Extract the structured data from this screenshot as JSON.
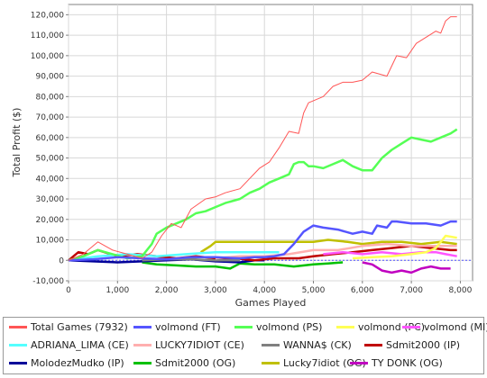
{
  "chart_data": {
    "type": "line",
    "xlabel": "Games Played",
    "ylabel": "Total Profit ($)",
    "xlim": [
      0,
      8250
    ],
    "ylim": [
      -10000,
      125000
    ],
    "xticks": [
      0,
      1000,
      2000,
      3000,
      4000,
      5000,
      6000,
      7000,
      8000
    ],
    "xtick_labels": [
      "0",
      "1,000",
      "2,000",
      "3,000",
      "4,000",
      "5,000",
      "6,000",
      "7,000",
      "8,000"
    ],
    "yticks": [
      -10000,
      0,
      10000,
      20000,
      30000,
      40000,
      50000,
      60000,
      70000,
      80000,
      90000,
      100000,
      110000,
      120000
    ],
    "ytick_labels": [
      "-10,000",
      "0",
      "10,000",
      "20,000",
      "30,000",
      "40,000",
      "50,000",
      "60,000",
      "70,000",
      "80,000",
      "90,000",
      "100,000",
      "110,000",
      "120,000"
    ],
    "grid": true,
    "legend_position": "bottom",
    "series": [
      {
        "name": "Total Games (7932)",
        "color": "#ff5555",
        "width": 1,
        "x": [
          0,
          300,
          600,
          900,
          1200,
          1500,
          1700,
          1900,
          2100,
          2300,
          2500,
          2800,
          3000,
          3200,
          3500,
          3700,
          3900,
          4100,
          4300,
          4500,
          4700,
          4800,
          4900,
          5000,
          5200,
          5400,
          5600,
          5800,
          6000,
          6200,
          6500,
          6700,
          6900,
          7100,
          7300,
          7500,
          7600,
          7700,
          7800,
          7932
        ],
        "y": [
          0,
          3000,
          9000,
          5000,
          3000,
          1000,
          4000,
          12000,
          18000,
          16000,
          25000,
          30000,
          31000,
          33000,
          35000,
          40000,
          45000,
          48000,
          55000,
          63000,
          62000,
          72000,
          77000,
          78000,
          80000,
          85000,
          87000,
          87000,
          88000,
          92000,
          90000,
          100000,
          99000,
          106000,
          109000,
          112000,
          111000,
          117000,
          119000,
          119000
        ]
      },
      {
        "name": "volmond (FT)",
        "color": "#5555ff",
        "width": 2.5,
        "x": [
          0,
          500,
          1000,
          1500,
          2000,
          2500,
          3000,
          3500,
          3800,
          4000,
          4200,
          4400,
          4600,
          4800,
          5000,
          5200,
          5500,
          5800,
          6000,
          6200,
          6300,
          6500,
          6600,
          6700,
          7000,
          7300,
          7600,
          7800,
          7932
        ],
        "y": [
          0,
          500,
          1500,
          1000,
          500,
          1500,
          1500,
          1000,
          1500,
          1500,
          2000,
          3000,
          8000,
          14000,
          17000,
          16000,
          15000,
          13000,
          14000,
          13000,
          17000,
          16000,
          19000,
          19000,
          18000,
          18000,
          17000,
          19000,
          19000
        ]
      },
      {
        "name": "volmond (PS)",
        "color": "#55ff55",
        "width": 2.5,
        "x": [
          0,
          300,
          600,
          900,
          1200,
          1500,
          1700,
          1800,
          2000,
          2200,
          2400,
          2600,
          2800,
          3000,
          3200,
          3500,
          3700,
          3900,
          4100,
          4300,
          4500,
          4600,
          4700,
          4800,
          4900,
          5000,
          5200,
          5400,
          5600,
          5800,
          6000,
          6200,
          6400,
          6600,
          6800,
          7000,
          7200,
          7400,
          7600,
          7800,
          7932
        ],
        "y": [
          0,
          2000,
          5000,
          3000,
          1000,
          2000,
          8000,
          13000,
          16000,
          18000,
          20000,
          23000,
          24000,
          26000,
          28000,
          30000,
          33000,
          35000,
          38000,
          40000,
          42000,
          47000,
          48000,
          48000,
          46000,
          46000,
          45000,
          47000,
          49000,
          46000,
          44000,
          44000,
          50000,
          54000,
          57000,
          60000,
          59000,
          58000,
          60000,
          62000,
          64000
        ]
      },
      {
        "name": "volmond (PC)",
        "color": "#ffff55",
        "width": 2.5,
        "x": [
          5800,
          6200,
          6600,
          7000,
          7300,
          7500,
          7700,
          7932
        ],
        "y": [
          1000,
          1500,
          2000,
          3000,
          4000,
          6000,
          12000,
          11000
        ]
      },
      {
        "name": "volmond (MI)",
        "color": "#ff55ff",
        "width": 2.5,
        "x": [
          5200,
          5600,
          6000,
          6400,
          6800,
          7200,
          7500,
          7700,
          7932
        ],
        "y": [
          3000,
          4000,
          3000,
          4000,
          3000,
          4000,
          4000,
          3000,
          2000
        ]
      },
      {
        "name": "ADRIANA_LIMA (CE)",
        "color": "#55ffff",
        "width": 2.5,
        "x": [
          0,
          600,
          1200,
          1800,
          2400,
          3000,
          3600,
          4000,
          4300
        ],
        "y": [
          0,
          2000,
          3000,
          2000,
          3000,
          4000,
          4000,
          4000,
          4000
        ]
      },
      {
        "name": "LUCKY7IDIOT (CE)",
        "color": "#ffafaf",
        "width": 2.5,
        "x": [
          3000,
          3500,
          4000,
          4500,
          5000,
          5500,
          6000,
          6500,
          7000,
          7500,
          7932
        ],
        "y": [
          1000,
          2000,
          2000,
          3000,
          5000,
          5000,
          7000,
          8000,
          7000,
          7000,
          7000
        ]
      },
      {
        "name": "WANNA$ (CK)",
        "color": "#808080",
        "width": 2.5,
        "x": [
          1500,
          2000,
          2500,
          3000,
          3500
        ],
        "y": [
          0,
          500,
          500,
          0,
          0
        ]
      },
      {
        "name": "Sdmit2000 (IP)",
        "color": "#c00000",
        "width": 2.5,
        "x": [
          0,
          200,
          400,
          600,
          1000,
          1400,
          1800,
          2200,
          2600,
          3000,
          3400,
          3800,
          4200,
          4700,
          5000,
          5400,
          5800,
          6200,
          6600,
          7000,
          7400,
          7800,
          7932
        ],
        "y": [
          0,
          4000,
          3000,
          5000,
          2000,
          3000,
          2000,
          1000,
          2000,
          1000,
          1000,
          0,
          1000,
          1000,
          2000,
          3000,
          4000,
          5000,
          6000,
          7000,
          6000,
          5000,
          5000
        ]
      },
      {
        "name": "MolodezMudko (IP)",
        "color": "#000099",
        "width": 2.5,
        "x": [
          0,
          500,
          1000,
          1500,
          2000,
          2500,
          3000,
          3500,
          3800,
          4000
        ],
        "y": [
          0,
          -500,
          -1000,
          -500,
          0,
          500,
          -500,
          -1000,
          0,
          0
        ]
      },
      {
        "name": "Sdmit2000 (OG)",
        "color": "#00c000",
        "width": 2.5,
        "x": [
          1500,
          1800,
          2200,
          2600,
          3000,
          3300,
          3500,
          3800,
          4200,
          4600,
          5000,
          5300,
          5600
        ],
        "y": [
          -1000,
          -2000,
          -2500,
          -3000,
          -3000,
          -4000,
          -1500,
          -2000,
          -2000,
          -3000,
          -2000,
          -1500,
          -1000
        ]
      },
      {
        "name": "Lucky7idiot (OG)",
        "color": "#c0c000",
        "width": 2.5,
        "x": [
          2700,
          2900,
          3000,
          3200,
          3600,
          4000,
          4400,
          4800,
          5000,
          5300,
          5700,
          6000,
          6400,
          6800,
          7200,
          7600,
          7932
        ],
        "y": [
          4000,
          7000,
          9000,
          9000,
          9000,
          9000,
          9000,
          9000,
          9000,
          10000,
          9000,
          8000,
          9000,
          9000,
          8000,
          9000,
          8000
        ]
      },
      {
        "name": "TY DONK (OG)",
        "color": "#c000c0",
        "width": 2.5,
        "x": [
          6000,
          6200,
          6400,
          6600,
          6800,
          7000,
          7200,
          7400,
          7600,
          7800
        ],
        "y": [
          -1000,
          -2000,
          -5000,
          -6000,
          -5000,
          -6000,
          -4000,
          -3000,
          -4000,
          -4000
        ]
      }
    ],
    "zero_line_color": "#5555ff"
  }
}
